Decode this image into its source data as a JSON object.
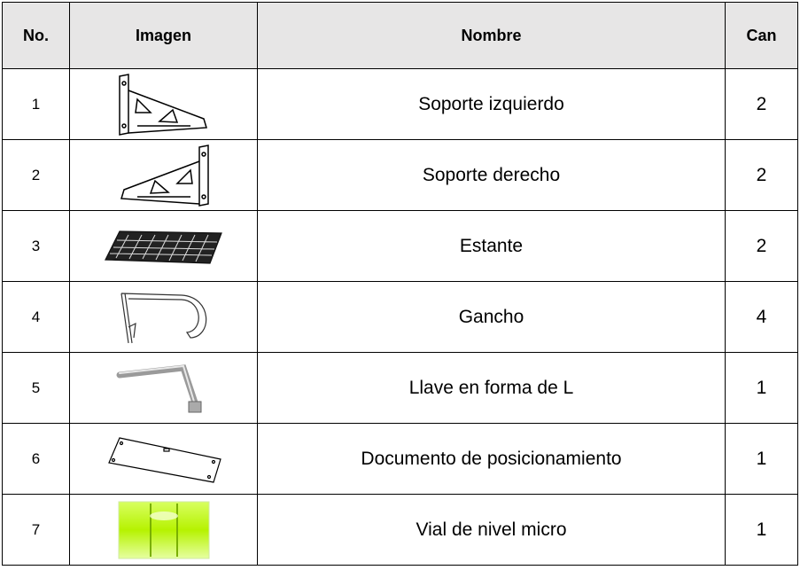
{
  "table": {
    "header": [
      "No.",
      "Imagen",
      "Nombre",
      "Can"
    ],
    "rows": [
      {
        "no": 1,
        "name": "Soporte izquierdo",
        "qty": 2
      },
      {
        "no": 2,
        "name": "Soporte derecho",
        "qty": 2
      },
      {
        "no": 3,
        "name": "Estante",
        "qty": 2
      },
      {
        "no": 4,
        "name": "Gancho",
        "qty": 4
      },
      {
        "no": 5,
        "name": "Llave en forma de L",
        "qty": 1
      },
      {
        "no": 6,
        "name": "Documento de posicionamiento",
        "qty": 1
      },
      {
        "no": 7,
        "name": "Vial de nivel micro",
        "qty": 1
      }
    ]
  }
}
